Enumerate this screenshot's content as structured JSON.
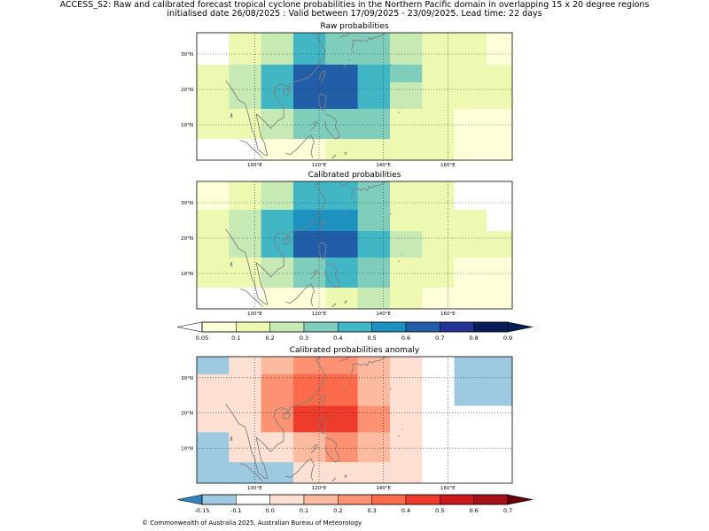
{
  "figure": {
    "title_line1": "ACCESS_S2: Raw and calibrated forecast tropical cyclone probabilities in the Northern Pacific domain in overlapping 15 x 20 degree regions",
    "title_line2": "initialised date 26/08/2025 :  Valid between 17/09/2025 - 23/09/2025. Lead time: 22 days",
    "footer": "© Commonwealth of Australia 2025, Australian Bureau of Meteorology"
  },
  "chart_data": [
    {
      "type": "heatmap",
      "title": "Raw probabilities",
      "x_ticks": [
        "100°E",
        "120°E",
        "140°E",
        "160°E"
      ],
      "x_tick_values": [
        100,
        120,
        140,
        160
      ],
      "y_ticks": [
        "30°N",
        "20°N",
        "10°N"
      ],
      "y_tick_values": [
        30,
        20,
        10
      ],
      "xlim": [
        82,
        180
      ],
      "ylim": [
        0,
        36
      ],
      "grid": true,
      "colorbar": "probability",
      "columns_lon": [
        [
          82,
          92
        ],
        [
          92,
          102
        ],
        [
          102,
          112
        ],
        [
          112,
          122
        ],
        [
          122,
          132
        ],
        [
          132,
          142
        ],
        [
          142,
          152
        ],
        [
          152,
          162
        ],
        [
          162,
          172
        ],
        [
          172,
          180
        ]
      ],
      "rows_lat": [
        [
          27,
          36
        ],
        [
          22,
          27
        ],
        [
          14.5,
          22
        ],
        [
          6,
          14.5
        ],
        [
          0,
          6
        ]
      ],
      "values": [
        [
          0.0,
          0.15,
          0.25,
          0.4,
          0.35,
          0.3,
          0.25,
          0.15,
          0.1,
          0.08
        ],
        [
          0.15,
          0.2,
          0.45,
          0.65,
          0.65,
          0.45,
          0.3,
          0.15,
          0.15,
          0.1
        ],
        [
          0.15,
          0.2,
          0.45,
          0.65,
          0.65,
          0.45,
          0.25,
          0.15,
          0.15,
          0.15
        ],
        [
          0.1,
          0.15,
          0.25,
          0.35,
          0.35,
          0.3,
          0.15,
          0.1,
          0.08,
          0.08
        ],
        [
          0.0,
          0.0,
          0.05,
          0.05,
          0.15,
          0.15,
          0.1,
          0.1,
          0.08,
          0.08
        ]
      ]
    },
    {
      "type": "heatmap",
      "title": "Calibrated probabilities",
      "x_ticks": [
        "100°E",
        "120°E",
        "140°E",
        "160°E"
      ],
      "x_tick_values": [
        100,
        120,
        140,
        160
      ],
      "y_ticks": [
        "30°N",
        "20°N",
        "10°N"
      ],
      "y_tick_values": [
        30,
        20,
        10
      ],
      "xlim": [
        82,
        180
      ],
      "ylim": [
        0,
        36
      ],
      "grid": true,
      "colorbar": "probability",
      "columns_lon": [
        [
          82,
          92
        ],
        [
          92,
          102
        ],
        [
          102,
          112
        ],
        [
          112,
          122
        ],
        [
          122,
          132
        ],
        [
          132,
          142
        ],
        [
          142,
          152
        ],
        [
          152,
          162
        ],
        [
          162,
          172
        ],
        [
          172,
          180
        ]
      ],
      "rows_lat": [
        [
          28,
          36
        ],
        [
          22,
          28
        ],
        [
          14.5,
          22
        ],
        [
          6,
          14.5
        ],
        [
          0,
          6
        ]
      ],
      "values": [
        [
          0.08,
          0.15,
          0.25,
          0.45,
          0.45,
          0.3,
          0.15,
          0.1,
          0.0,
          0.0
        ],
        [
          0.15,
          0.2,
          0.45,
          0.55,
          0.55,
          0.3,
          0.15,
          0.1,
          0.1,
          0.0
        ],
        [
          0.15,
          0.2,
          0.45,
          0.65,
          0.65,
          0.45,
          0.2,
          0.1,
          0.1,
          0.1
        ],
        [
          0.1,
          0.15,
          0.25,
          0.3,
          0.45,
          0.3,
          0.15,
          0.1,
          0.08,
          0.08
        ],
        [
          0.0,
          0.0,
          0.05,
          0.05,
          0.15,
          0.2,
          0.1,
          0.08,
          0.08,
          0.08
        ]
      ]
    },
    {
      "type": "heatmap",
      "title": "Calibrated probabilities anomaly",
      "x_ticks": [
        "100°E",
        "120°E",
        "140°E",
        "160°E"
      ],
      "x_tick_values": [
        100,
        120,
        140,
        160
      ],
      "y_ticks": [
        "30°N",
        "20°N",
        "10°N"
      ],
      "y_tick_values": [
        30,
        20,
        10
      ],
      "xlim": [
        82,
        180
      ],
      "ylim": [
        0,
        36
      ],
      "grid": true,
      "colorbar": "anomaly",
      "columns_lon": [
        [
          82,
          92
        ],
        [
          92,
          102
        ],
        [
          102,
          112
        ],
        [
          112,
          122
        ],
        [
          122,
          132
        ],
        [
          132,
          142
        ],
        [
          142,
          152
        ],
        [
          152,
          162
        ],
        [
          162,
          172
        ],
        [
          172,
          180
        ]
      ],
      "rows_lat": [
        [
          31,
          36
        ],
        [
          22,
          31
        ],
        [
          14.5,
          22
        ],
        [
          6,
          14.5
        ],
        [
          0,
          6
        ]
      ],
      "values": [
        [
          -0.12,
          0.0,
          0.15,
          0.25,
          0.25,
          0.15,
          0.0,
          -0.05,
          -0.12,
          -0.15
        ],
        [
          0.0,
          0.05,
          0.25,
          0.35,
          0.35,
          0.15,
          0.0,
          -0.05,
          -0.12,
          -0.15
        ],
        [
          0.0,
          0.05,
          0.25,
          0.45,
          0.45,
          0.25,
          0.05,
          -0.05,
          -0.05,
          -0.05
        ],
        [
          -0.12,
          0.0,
          0.05,
          0.15,
          0.25,
          0.15,
          0.0,
          -0.05,
          -0.05,
          -0.05
        ],
        [
          -0.15,
          -0.15,
          -0.15,
          0.0,
          0.05,
          0.05,
          0.0,
          -0.05,
          -0.05,
          -0.05
        ]
      ]
    }
  ],
  "colorbars": {
    "probability": {
      "labels": [
        "0.05",
        "0.1",
        "0.2",
        "0.3",
        "0.4",
        "0.5",
        "0.6",
        "0.7",
        "0.8",
        "0.9"
      ],
      "bounds": [
        0.05,
        0.1,
        0.2,
        0.3,
        0.4,
        0.5,
        0.6,
        0.7,
        0.8,
        0.9
      ],
      "colors": [
        "#ffffd9",
        "#edf8b1",
        "#c7e9b4",
        "#7fcdbb",
        "#41b6c4",
        "#1d91c0",
        "#225ea8",
        "#253494",
        "#081d58"
      ],
      "under_color": "#ffffff",
      "over_color": "#081d58"
    },
    "anomaly": {
      "labels": [
        "-0.15",
        "-0.1",
        "0.0",
        "0.1",
        "0.2",
        "0.3",
        "0.4",
        "0.5",
        "0.6",
        "0.7"
      ],
      "bounds": [
        -0.15,
        -0.1,
        0.0,
        0.1,
        0.2,
        0.3,
        0.4,
        0.5,
        0.6,
        0.7
      ],
      "colors": [
        "#9ecae1",
        "#ffffff",
        "#fee0d2",
        "#fcbba1",
        "#fc9272",
        "#fb6a4a",
        "#ef3b2c",
        "#cb181d",
        "#a50f15"
      ],
      "under_color": "#3182bd",
      "over_color": "#67000d"
    }
  },
  "colors": {
    "coastline": "#808080",
    "grid": "#333333"
  }
}
